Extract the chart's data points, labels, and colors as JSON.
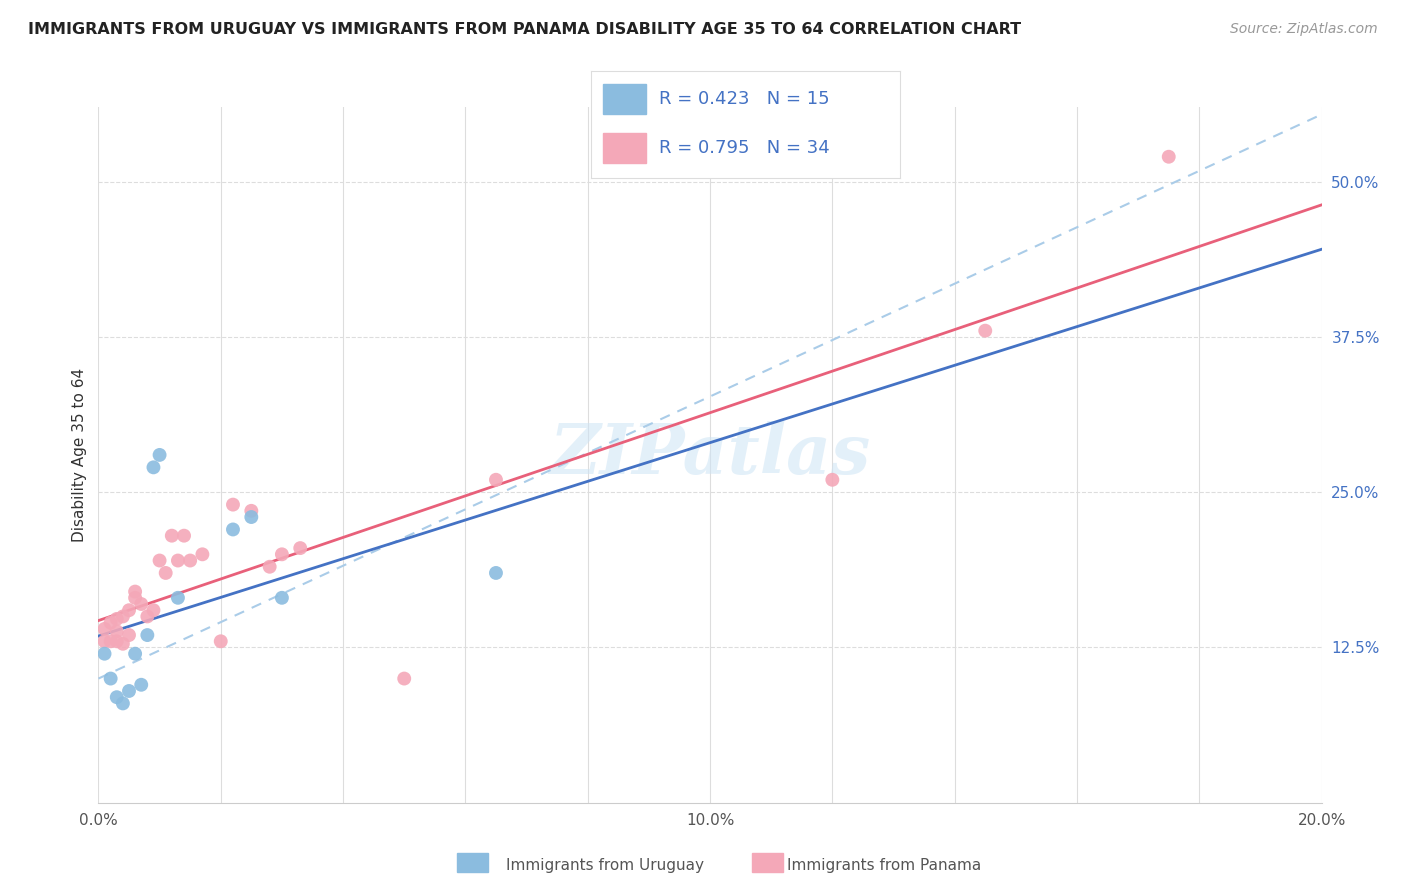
{
  "title": "IMMIGRANTS FROM URUGUAY VS IMMIGRANTS FROM PANAMA DISABILITY AGE 35 TO 64 CORRELATION CHART",
  "source": "Source: ZipAtlas.com",
  "ylabel": "Disability Age 35 to 64",
  "xlim": [
    0.0,
    0.2
  ],
  "ylim": [
    0.0,
    0.56
  ],
  "uruguay_color": "#8bbcdf",
  "panama_color": "#f4a8b8",
  "uruguay_line_color": "#4472c4",
  "panama_line_color": "#e8607a",
  "dashed_line_color": "#aacce8",
  "r_uruguay": 0.423,
  "n_uruguay": 15,
  "r_panama": 0.795,
  "n_panama": 34,
  "legend_label_uruguay": "Immigrants from Uruguay",
  "legend_label_panama": "Immigrants from Panama",
  "watermark": "ZIPatlas",
  "uruguay_x": [
    0.001,
    0.002,
    0.003,
    0.004,
    0.005,
    0.006,
    0.007,
    0.008,
    0.009,
    0.01,
    0.013,
    0.022,
    0.025,
    0.03,
    0.065
  ],
  "uruguay_y": [
    0.12,
    0.1,
    0.085,
    0.08,
    0.09,
    0.12,
    0.095,
    0.135,
    0.27,
    0.28,
    0.165,
    0.22,
    0.23,
    0.165,
    0.185
  ],
  "panama_x": [
    0.001,
    0.001,
    0.002,
    0.002,
    0.003,
    0.003,
    0.003,
    0.004,
    0.004,
    0.005,
    0.005,
    0.006,
    0.006,
    0.007,
    0.008,
    0.009,
    0.01,
    0.011,
    0.012,
    0.013,
    0.014,
    0.015,
    0.017,
    0.02,
    0.022,
    0.025,
    0.028,
    0.03,
    0.033,
    0.05,
    0.065,
    0.12,
    0.145,
    0.175
  ],
  "panama_y": [
    0.13,
    0.14,
    0.13,
    0.145,
    0.13,
    0.138,
    0.148,
    0.128,
    0.15,
    0.135,
    0.155,
    0.165,
    0.17,
    0.16,
    0.15,
    0.155,
    0.195,
    0.185,
    0.215,
    0.195,
    0.215,
    0.195,
    0.2,
    0.13,
    0.24,
    0.235,
    0.19,
    0.2,
    0.205,
    0.1,
    0.26,
    0.26,
    0.38,
    0.52
  ],
  "grid_color": "#e0e0e0",
  "dashed_grid_color": "#dddddd"
}
